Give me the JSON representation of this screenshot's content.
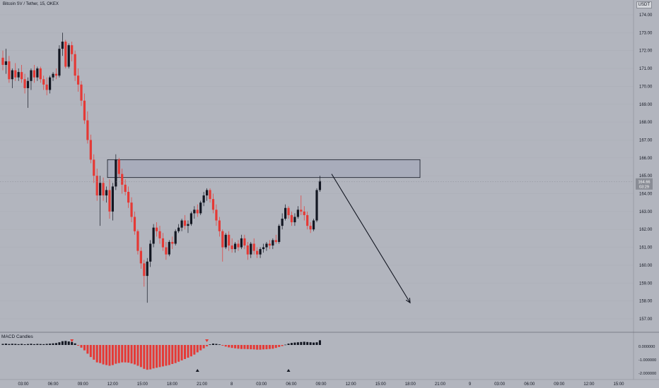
{
  "header": {
    "symbol_line": "Bitcoin SV / Tether, 15, OKEX",
    "currency": "USDT"
  },
  "indicator": {
    "name": "MACD Candles"
  },
  "price_axis": {
    "ticks": [
      "174.00",
      "173.00",
      "172.00",
      "171.00",
      "170.00",
      "169.00",
      "168.00",
      "167.00",
      "166.00",
      "165.00",
      "164.00",
      "163.00",
      "162.00",
      "161.00",
      "160.00",
      "159.00",
      "158.00",
      "157.00"
    ],
    "last_price": "164.66",
    "countdown": "03:29"
  },
  "indicator_axis": {
    "ticks": [
      "0.000000",
      "-1.000000",
      "-2.000000"
    ]
  },
  "time_axis": {
    "ticks": [
      "03:00",
      "06:00",
      "09:00",
      "12:00",
      "15:00",
      "18:00",
      "21:00",
      "8",
      "03:00",
      "06:00",
      "09:00",
      "12:00",
      "15:00",
      "18:00",
      "21:00",
      "9",
      "03:00",
      "06:00",
      "09:00",
      "12:00",
      "15:00"
    ]
  },
  "colors": {
    "background": "#b2b5be",
    "up": "#131722",
    "down": "#e53935",
    "zone": "#a4a9ba"
  },
  "chart_data": {
    "type": "candlestick",
    "ylim": [
      156.5,
      174.5
    ],
    "zone": {
      "y_top": 165.9,
      "y_bottom": 164.9,
      "label": ""
    },
    "forecast_arrow": {
      "from": 165.1,
      "to": 157.9
    },
    "candles": [
      [
        171.6,
        172.0,
        170.9,
        171.2
      ],
      [
        171.2,
        172.1,
        170.7,
        171.4
      ],
      [
        171.4,
        171.7,
        170.2,
        170.4
      ],
      [
        170.4,
        171.0,
        169.9,
        170.9
      ],
      [
        170.9,
        171.3,
        170.3,
        170.5
      ],
      [
        170.5,
        171.0,
        170.3,
        170.8
      ],
      [
        170.8,
        171.2,
        170.2,
        170.4
      ],
      [
        170.4,
        170.7,
        169.6,
        169.9
      ],
      [
        169.9,
        170.5,
        168.8,
        170.3
      ],
      [
        170.3,
        171.0,
        169.8,
        170.9
      ],
      [
        170.9,
        171.2,
        170.2,
        170.5
      ],
      [
        170.5,
        171.1,
        170.3,
        171.0
      ],
      [
        171.0,
        171.1,
        170.2,
        170.4
      ],
      [
        170.4,
        170.6,
        169.8,
        170.1
      ],
      [
        170.1,
        170.5,
        169.5,
        169.8
      ],
      [
        169.8,
        170.6,
        169.6,
        170.5
      ],
      [
        170.5,
        170.8,
        170.3,
        170.7
      ],
      [
        170.7,
        171.0,
        170.4,
        170.6
      ],
      [
        170.6,
        172.3,
        170.5,
        172.1
      ],
      [
        172.1,
        173.0,
        171.7,
        172.5
      ],
      [
        172.5,
        172.6,
        171.0,
        171.1
      ],
      [
        171.1,
        172.4,
        171.0,
        172.3
      ],
      [
        172.3,
        172.5,
        171.4,
        171.8
      ],
      [
        171.8,
        172.0,
        170.3,
        170.6
      ],
      [
        170.6,
        171.0,
        169.7,
        170.1
      ],
      [
        170.1,
        170.3,
        168.9,
        169.2
      ],
      [
        169.2,
        169.6,
        167.9,
        168.1
      ],
      [
        168.1,
        168.6,
        166.8,
        167.0
      ],
      [
        167.0,
        167.3,
        165.7,
        165.9
      ],
      [
        165.9,
        166.2,
        164.6,
        165.0
      ],
      [
        165.0,
        165.4,
        163.6,
        163.9
      ],
      [
        163.9,
        165.0,
        162.2,
        164.6
      ],
      [
        164.6,
        164.9,
        163.6,
        163.9
      ],
      [
        163.9,
        164.4,
        163.5,
        164.2
      ],
      [
        164.2,
        164.8,
        162.6,
        163.0
      ],
      [
        163.0,
        164.6,
        162.5,
        164.4
      ],
      [
        164.4,
        166.2,
        164.2,
        165.9
      ],
      [
        165.9,
        166.0,
        164.9,
        165.1
      ],
      [
        165.1,
        165.4,
        164.0,
        164.5
      ],
      [
        164.5,
        164.8,
        163.9,
        164.1
      ],
      [
        164.1,
        164.4,
        163.2,
        163.5
      ],
      [
        163.5,
        163.8,
        162.4,
        162.7
      ],
      [
        162.7,
        163.0,
        161.7,
        161.9
      ],
      [
        161.9,
        162.0,
        160.6,
        160.8
      ],
      [
        160.8,
        161.0,
        159.8,
        160.1
      ],
      [
        160.1,
        160.3,
        158.8,
        159.4
      ],
      [
        159.4,
        160.4,
        157.9,
        160.2
      ],
      [
        160.2,
        161.4,
        159.9,
        161.2
      ],
      [
        161.2,
        162.3,
        161.0,
        162.1
      ],
      [
        162.1,
        162.4,
        161.6,
        161.9
      ],
      [
        161.9,
        162.2,
        161.2,
        161.5
      ],
      [
        161.5,
        161.8,
        160.8,
        161.0
      ],
      [
        161.0,
        161.3,
        160.3,
        160.6
      ],
      [
        160.6,
        161.4,
        160.5,
        161.3
      ],
      [
        161.3,
        161.6,
        160.9,
        161.2
      ],
      [
        161.2,
        162.0,
        161.1,
        161.9
      ],
      [
        161.9,
        162.3,
        161.8,
        162.1
      ],
      [
        162.1,
        162.6,
        161.9,
        162.5
      ],
      [
        162.5,
        162.8,
        162.0,
        162.2
      ],
      [
        162.2,
        162.5,
        161.8,
        162.3
      ],
      [
        162.3,
        163.0,
        162.2,
        162.9
      ],
      [
        162.9,
        163.3,
        162.6,
        163.1
      ],
      [
        163.1,
        163.4,
        162.7,
        162.9
      ],
      [
        162.9,
        163.6,
        162.8,
        163.5
      ],
      [
        163.5,
        164.1,
        163.3,
        163.9
      ],
      [
        163.9,
        164.3,
        163.6,
        164.2
      ],
      [
        164.2,
        164.3,
        163.5,
        163.7
      ],
      [
        163.7,
        164.0,
        162.9,
        163.1
      ],
      [
        163.1,
        163.4,
        162.2,
        162.5
      ],
      [
        162.5,
        162.7,
        161.6,
        161.9
      ],
      [
        161.9,
        162.0,
        160.2,
        161.0
      ],
      [
        161.0,
        161.8,
        160.9,
        161.7
      ],
      [
        161.7,
        161.9,
        160.8,
        161.1
      ],
      [
        161.1,
        161.5,
        160.7,
        160.9
      ],
      [
        160.9,
        161.3,
        160.7,
        161.2
      ],
      [
        161.2,
        161.4,
        160.8,
        161.0
      ],
      [
        161.0,
        161.7,
        160.9,
        161.5
      ],
      [
        161.5,
        161.7,
        160.9,
        161.1
      ],
      [
        161.1,
        161.3,
        160.3,
        160.6
      ],
      [
        160.6,
        161.3,
        160.4,
        161.2
      ],
      [
        161.2,
        161.5,
        160.6,
        160.8
      ],
      [
        160.8,
        161.0,
        160.4,
        160.6
      ],
      [
        160.6,
        161.0,
        160.4,
        160.9
      ],
      [
        160.9,
        161.2,
        160.7,
        161.0
      ],
      [
        161.0,
        161.3,
        160.8,
        161.2
      ],
      [
        161.2,
        161.4,
        160.9,
        161.1
      ],
      [
        161.1,
        161.5,
        160.9,
        161.4
      ],
      [
        161.4,
        161.7,
        161.2,
        161.3
      ],
      [
        161.3,
        162.3,
        161.2,
        162.2
      ],
      [
        162.2,
        162.9,
        162.0,
        162.6
      ],
      [
        162.6,
        163.4,
        162.5,
        163.2
      ],
      [
        163.2,
        163.3,
        162.6,
        162.8
      ],
      [
        162.8,
        163.0,
        162.2,
        162.4
      ],
      [
        162.4,
        162.9,
        162.2,
        162.7
      ],
      [
        162.7,
        163.3,
        162.6,
        163.1
      ],
      [
        163.1,
        163.9,
        162.8,
        163.0
      ],
      [
        163.0,
        163.3,
        162.5,
        162.8
      ],
      [
        162.8,
        163.0,
        162.0,
        162.2
      ],
      [
        162.2,
        162.4,
        161.8,
        162.0
      ],
      [
        162.0,
        162.6,
        161.9,
        162.5
      ],
      [
        162.5,
        164.3,
        162.4,
        164.2
      ],
      [
        164.2,
        165.0,
        164.1,
        164.7
      ]
    ],
    "macd": [
      0.08,
      0.1,
      0.07,
      0.09,
      0.08,
      0.06,
      0.08,
      0.05,
      0.07,
      0.09,
      0.06,
      0.08,
      0.07,
      0.06,
      0.08,
      0.1,
      0.12,
      0.14,
      0.2,
      0.28,
      0.3,
      0.26,
      0.22,
      0.12,
      -0.05,
      -0.2,
      -0.4,
      -0.65,
      -0.9,
      -1.1,
      -1.3,
      -1.35,
      -1.45,
      -1.5,
      -1.55,
      -1.5,
      -1.4,
      -1.35,
      -1.3,
      -1.3,
      -1.32,
      -1.38,
      -1.45,
      -1.55,
      -1.65,
      -1.78,
      -1.85,
      -1.82,
      -1.75,
      -1.7,
      -1.65,
      -1.6,
      -1.55,
      -1.5,
      -1.42,
      -1.35,
      -1.25,
      -1.15,
      -1.05,
      -0.95,
      -0.85,
      -0.72,
      -0.55,
      -0.4,
      -0.25,
      -0.1,
      0.04,
      0.1,
      0.08,
      0.04,
      -0.05,
      -0.12,
      -0.18,
      -0.22,
      -0.25,
      -0.28,
      -0.3,
      -0.3,
      -0.31,
      -0.32,
      -0.33,
      -0.35,
      -0.35,
      -0.33,
      -0.32,
      -0.3,
      -0.28,
      -0.22,
      -0.15,
      -0.08,
      0.02,
      0.1,
      0.15,
      0.18,
      0.2,
      0.22,
      0.24,
      0.22,
      0.2,
      0.18,
      0.2,
      0.35
    ],
    "markers": [
      {
        "type": "down",
        "index": 22
      },
      {
        "type": "down",
        "index": 65
      },
      {
        "type": "up",
        "index": 62
      },
      {
        "type": "up",
        "index": 91
      }
    ]
  }
}
